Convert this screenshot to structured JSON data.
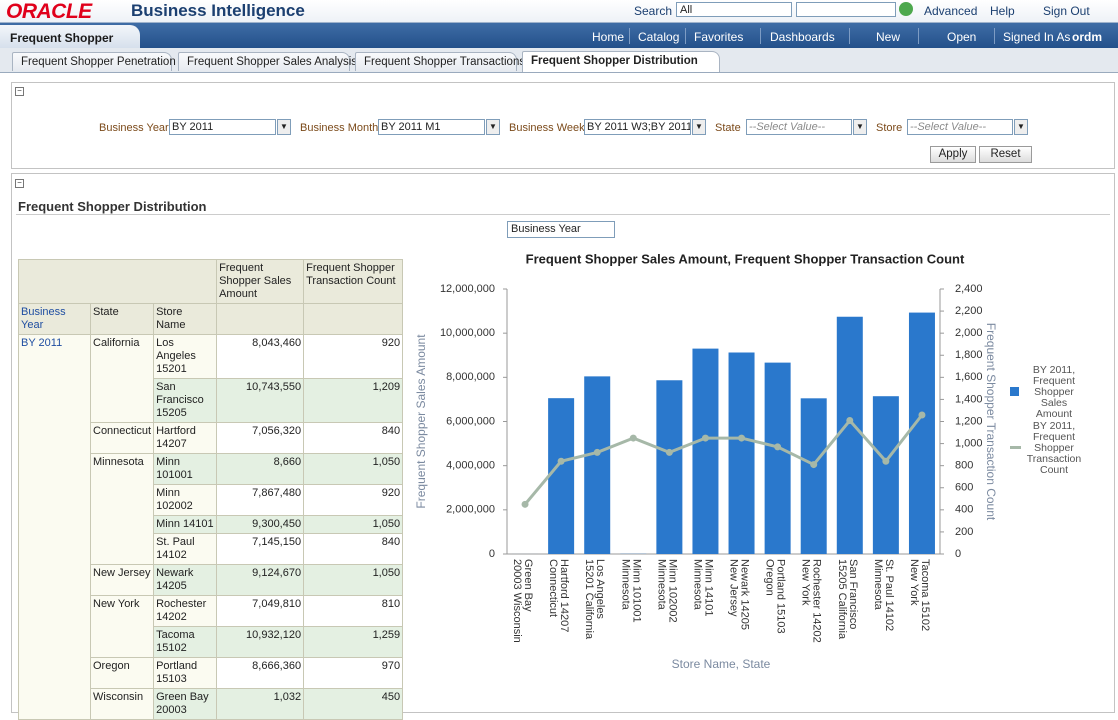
{
  "header": {
    "logo": "ORACLE",
    "product": "Business Intelligence",
    "search_label": "Search",
    "search_scope": "All",
    "advanced": "Advanced",
    "help": "Help",
    "sign_out": "Sign Out"
  },
  "nav": {
    "dashboard": "Frequent Shopper",
    "home": "Home",
    "catalog": "Catalog",
    "favorites": "Favorites",
    "dashboards": "Dashboards",
    "new": "New",
    "open": "Open",
    "signed_in": "Signed In As",
    "user": "ordm"
  },
  "tabs": [
    "Frequent Shopper Penetration",
    "Frequent Shopper Sales Analysis",
    "Frequent Shopper Transactions",
    "Frequent Shopper Distribution"
  ],
  "active_tab": 3,
  "prompts": {
    "fields": [
      {
        "label": "Business Year",
        "value": "BY 2011"
      },
      {
        "label": "Business Month",
        "value": "BY 2011 M1"
      },
      {
        "label": "Business Week",
        "value": "BY 2011 W3;BY 2011"
      },
      {
        "label": "State",
        "placeholder": "--Select Value--"
      },
      {
        "label": "Store",
        "placeholder": "--Select Value--"
      }
    ],
    "apply": "Apply",
    "reset": "Reset"
  },
  "section": {
    "title": "Frequent Shopper Distribution",
    "view_selector": "Business Year"
  },
  "table": {
    "corner_headers": [
      "Business Year",
      "State",
      "Store Name"
    ],
    "measures": [
      "Frequent Shopper Sales Amount",
      "Frequent Shopper Transaction Count"
    ],
    "year": "BY 2011",
    "groups": [
      {
        "state": "California",
        "rows": [
          [
            "Los Angeles 15201",
            "8,043,460",
            "920"
          ],
          [
            "San Francisco 15205",
            "10,743,550",
            "1,209"
          ]
        ]
      },
      {
        "state": "Connecticut",
        "rows": [
          [
            "Hartford 14207",
            "7,056,320",
            "840"
          ]
        ]
      },
      {
        "state": "Minnesota",
        "rows": [
          [
            "Minn 101001",
            "8,660",
            "1,050"
          ],
          [
            "Minn 102002",
            "7,867,480",
            "920"
          ],
          [
            "Minn 14101",
            "9,300,450",
            "1,050"
          ],
          [
            "St. Paul 14102",
            "7,145,150",
            "840"
          ]
        ]
      },
      {
        "state": "New Jersey",
        "rows": [
          [
            "Newark 14205",
            "9,124,670",
            "1,050"
          ]
        ]
      },
      {
        "state": "New York",
        "rows": [
          [
            "Rochester 14202",
            "7,049,810",
            "810"
          ],
          [
            "Tacoma 15102",
            "10,932,120",
            "1,259"
          ]
        ]
      },
      {
        "state": "Oregon",
        "rows": [
          [
            "Portland 15103",
            "8,666,360",
            "970"
          ]
        ]
      },
      {
        "state": "Wisconsin",
        "rows": [
          [
            "Green Bay 20003",
            "1,032",
            "450"
          ]
        ]
      }
    ]
  },
  "chart_data": {
    "type": "bar-line",
    "title": "Frequent Shopper Sales Amount, Frequent Shopper Transaction Count",
    "x_label": "Store Name, State",
    "y_label": "Frequent Shopper Sales Amount",
    "y2_label": "Frequent Shopper Transaction Count",
    "categories": [
      "Green Bay 20003 Wisconsin",
      "Hartford 14207 Connecticut",
      "Los Angeles 15201 California",
      "Minn 101001 Minnesota",
      "Minn 102002 Minnesota",
      "Minn 14101 Minnesota",
      "Newark 14205 New Jersey",
      "Portland 15103 Oregon",
      "Rochester 14202 New York",
      "San Francisco 15205 California",
      "St. Paul 14102 Minnesota",
      "Tacoma 15102 New York"
    ],
    "series": [
      {
        "name": "BY 2011, Frequent Shopper Sales Amount",
        "type": "bar",
        "color": "#2a78cc",
        "values": [
          1032,
          7056320,
          8043460,
          8660,
          7867480,
          9300450,
          9124670,
          8666360,
          7049810,
          10743550,
          7145150,
          10932120
        ]
      },
      {
        "name": "BY 2011, Frequent Shopper Transaction Count",
        "type": "line",
        "axis": "y2",
        "color": "#a6b8a8",
        "values": [
          450,
          840,
          920,
          1050,
          920,
          1050,
          1050,
          970,
          810,
          1209,
          840,
          1259
        ]
      }
    ],
    "ylim": [
      0,
      12000000
    ],
    "yticks": [
      0,
      {
        "value": 2000000,
        "label": "2,000,000"
      },
      {
        "value": 4000000,
        "label": "4,000,000"
      },
      {
        "value": 6000000,
        "label": "6,000,000"
      },
      {
        "value": 8000000,
        "label": "8,000,000"
      },
      {
        "value": 10000000,
        "label": "10,000,000"
      },
      {
        "value": 12000000,
        "label": "12,000,000"
      }
    ],
    "y2lim": [
      0,
      2400
    ],
    "y2ticks": [
      0,
      200,
      400,
      600,
      800,
      {
        "value": 1000,
        "label": "1,000"
      },
      {
        "value": 1200,
        "label": "1,200"
      },
      {
        "value": 1400,
        "label": "1,400"
      },
      {
        "value": 1600,
        "label": "1,600"
      },
      {
        "value": 1800,
        "label": "1,800"
      },
      {
        "value": 2000,
        "label": "2,000"
      },
      {
        "value": 2200,
        "label": "2,200"
      },
      {
        "value": 2400,
        "label": "2,400"
      }
    ],
    "legend": "right"
  }
}
